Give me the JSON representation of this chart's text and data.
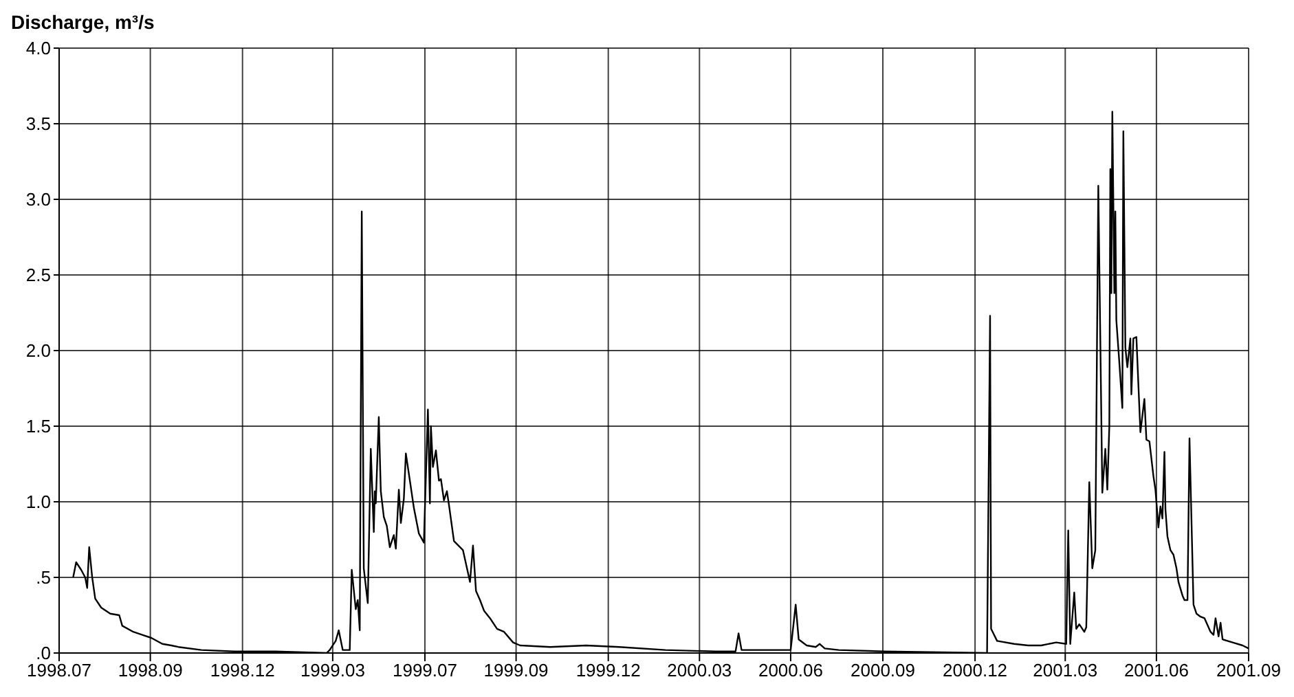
{
  "chart_data": {
    "type": "line",
    "ylabel": "Discharge, m³/s",
    "xlim": [
      "1998-07-01",
      "2001-09-30"
    ],
    "xticks": [
      {
        "value": "1998-07-01",
        "label": "1998.07"
      },
      {
        "value": "1998-09-30",
        "label": "1998.09"
      },
      {
        "value": "1998-12-31",
        "label": "1998.12"
      },
      {
        "value": "1999-03-31",
        "label": "1999.03"
      },
      {
        "value": "1999-07-01",
        "label": "1999.07"
      },
      {
        "value": "1999-09-30",
        "label": "1999.09"
      },
      {
        "value": "1999-12-31",
        "label": "1999.12"
      },
      {
        "value": "2000-03-31",
        "label": "2000.03"
      },
      {
        "value": "2000-06-30",
        "label": "2000.06"
      },
      {
        "value": "2000-09-30",
        "label": "2000.09"
      },
      {
        "value": "2000-12-31",
        "label": "2000.12"
      },
      {
        "value": "2001-03-31",
        "label": "2001.03"
      },
      {
        "value": "2001-06-30",
        "label": "2001.06"
      },
      {
        "value": "2001-09-30",
        "label": "2001.09"
      }
    ],
    "ylim": [
      0,
      4
    ],
    "yticks": [
      {
        "value": 0,
        "label": ".0"
      },
      {
        "value": 0.5,
        "label": ".5"
      },
      {
        "value": 1,
        "label": "1.0"
      },
      {
        "value": 1.5,
        "label": "1.5"
      },
      {
        "value": 2,
        "label": "2.0"
      },
      {
        "value": 2.5,
        "label": "2.5"
      },
      {
        "value": 3,
        "label": "3.0"
      },
      {
        "value": 3.5,
        "label": "3.5"
      },
      {
        "value": 4,
        "label": "4.0"
      }
    ],
    "grid": true,
    "line_style": "solid",
    "series": [
      {
        "color": "#000000",
        "x": [
          "1998-07-15",
          "1998-07-18",
          "1998-07-23",
          "1998-07-27",
          "1998-07-29",
          "1998-07-31",
          "1998-08-03",
          "1998-08-06",
          "1998-08-12",
          "1998-08-21",
          "1998-08-30",
          "1998-09-02",
          "1998-09-13",
          "1998-09-22",
          "1998-10-01",
          "1998-10-12",
          "1998-10-21",
          "1998-10-28",
          "1998-11-20",
          "1998-12-23",
          "1999-02-02",
          "1999-03-25",
          "1999-03-28",
          "1999-04-03",
          "1999-04-06",
          "1999-04-10",
          "1999-04-17",
          "1999-04-19",
          "1999-04-23",
          "1999-04-25",
          "1999-04-27",
          "1999-04-29",
          "1999-05-01",
          "1999-05-05",
          "1999-05-08",
          "1999-05-11",
          "1999-05-12",
          "1999-05-13",
          "1999-05-16",
          "1999-05-18",
          "1999-05-21",
          "1999-05-24",
          "1999-05-27",
          "1999-05-31",
          "1999-06-02",
          "1999-06-05",
          "1999-06-07",
          "1999-06-10",
          "1999-06-12",
          "1999-06-16",
          "1999-06-20",
          "1999-06-25",
          "1999-06-30",
          "1999-07-04",
          "1999-07-06",
          "1999-07-07",
          "1999-07-09",
          "1999-07-12",
          "1999-07-15",
          "1999-07-17",
          "1999-07-20",
          "1999-07-23",
          "1999-07-25",
          "1999-07-30",
          "1999-08-08",
          "1999-08-15",
          "1999-08-18",
          "1999-08-21",
          "1999-08-25",
          "1999-08-29",
          "1999-09-04",
          "1999-09-11",
          "1999-09-18",
          "1999-09-27",
          "1999-10-04",
          "1999-11-03",
          "1999-12-09",
          "2000-01-11",
          "2000-02-26",
          "2000-04-16",
          "2000-05-06",
          "2000-05-09",
          "2000-05-12",
          "2000-06-23",
          "2000-06-30",
          "2000-07-05",
          "2000-07-08",
          "2000-07-16",
          "2000-07-25",
          "2000-07-29",
          "2000-08-03",
          "2000-08-17",
          "2000-10-02",
          "2001-01-12",
          "2001-01-15",
          "2001-01-16",
          "2001-01-22",
          "2001-02-08",
          "2001-02-22",
          "2001-03-07",
          "2001-03-22",
          "2001-04-01",
          "2001-04-03",
          "2001-04-05",
          "2001-04-09",
          "2001-04-11",
          "2001-04-14",
          "2001-04-19",
          "2001-04-21",
          "2001-04-24",
          "2001-04-27",
          "2001-04-30",
          "2001-05-03",
          "2001-05-07",
          "2001-05-10",
          "2001-05-12",
          "2001-05-14",
          "2001-05-15",
          "2001-05-16",
          "2001-05-17",
          "2001-05-19",
          "2001-05-20",
          "2001-05-21",
          "2001-05-24",
          "2001-05-27",
          "2001-05-28",
          "2001-05-30",
          "2001-06-01",
          "2001-06-04",
          "2001-06-05",
          "2001-06-07",
          "2001-06-10",
          "2001-06-14",
          "2001-06-18",
          "2001-06-20",
          "2001-06-23",
          "2001-06-27",
          "2001-06-29",
          "2001-07-02",
          "2001-07-04",
          "2001-07-06",
          "2001-07-08",
          "2001-07-09",
          "2001-07-11",
          "2001-07-14",
          "2001-07-17",
          "2001-07-20",
          "2001-07-22",
          "2001-07-26",
          "2001-07-28",
          "2001-07-31",
          "2001-08-02",
          "2001-08-06",
          "2001-08-09",
          "2001-08-13",
          "2001-08-17",
          "2001-08-23",
          "2001-08-26",
          "2001-08-28",
          "2001-08-31",
          "2001-09-02",
          "2001-09-04",
          "2001-09-14",
          "2001-09-24",
          "2001-09-30"
        ],
        "values": [
          0.5,
          0.6,
          0.55,
          0.5,
          0.43,
          0.7,
          0.5,
          0.36,
          0.3,
          0.26,
          0.25,
          0.18,
          0.14,
          0.12,
          0.1,
          0.06,
          0.05,
          0.04,
          0.02,
          0.01,
          0.01,
          0.0,
          0.02,
          0.08,
          0.15,
          0.02,
          0.02,
          0.55,
          0.29,
          0.35,
          0.15,
          2.92,
          0.56,
          0.33,
          1.35,
          0.8,
          1.07,
          0.99,
          1.56,
          1.07,
          0.9,
          0.84,
          0.7,
          0.78,
          0.69,
          1.08,
          0.86,
          1.02,
          1.32,
          1.14,
          0.96,
          0.79,
          0.73,
          1.61,
          0.99,
          1.5,
          1.23,
          1.34,
          1.14,
          1.15,
          1.01,
          1.07,
          0.98,
          0.74,
          0.68,
          0.47,
          0.71,
          0.41,
          0.35,
          0.28,
          0.23,
          0.16,
          0.14,
          0.07,
          0.05,
          0.04,
          0.05,
          0.04,
          0.02,
          0.01,
          0.01,
          0.13,
          0.02,
          0.02,
          0.02,
          0.32,
          0.09,
          0.05,
          0.04,
          0.06,
          0.03,
          0.02,
          0.01,
          0.0,
          2.23,
          0.16,
          0.08,
          0.06,
          0.05,
          0.05,
          0.07,
          0.06,
          0.81,
          0.06,
          0.4,
          0.16,
          0.19,
          0.14,
          0.17,
          1.13,
          0.56,
          0.68,
          3.09,
          1.06,
          1.35,
          1.08,
          1.5,
          3.2,
          2.38,
          3.58,
          2.38,
          2.92,
          2.2,
          1.92,
          1.62,
          3.45,
          2.02,
          1.89,
          2.08,
          1.71,
          2.08,
          2.09,
          1.46,
          1.68,
          1.41,
          1.4,
          1.17,
          1.08,
          0.83,
          0.97,
          0.89,
          1.33,
          0.95,
          0.77,
          0.68,
          0.65,
          0.56,
          0.47,
          0.38,
          0.35,
          0.35,
          1.42,
          0.32,
          0.26,
          0.24,
          0.23,
          0.14,
          0.12,
          0.23,
          0.11,
          0.2,
          0.09,
          0.07,
          0.05,
          0.03
        ]
      }
    ]
  }
}
